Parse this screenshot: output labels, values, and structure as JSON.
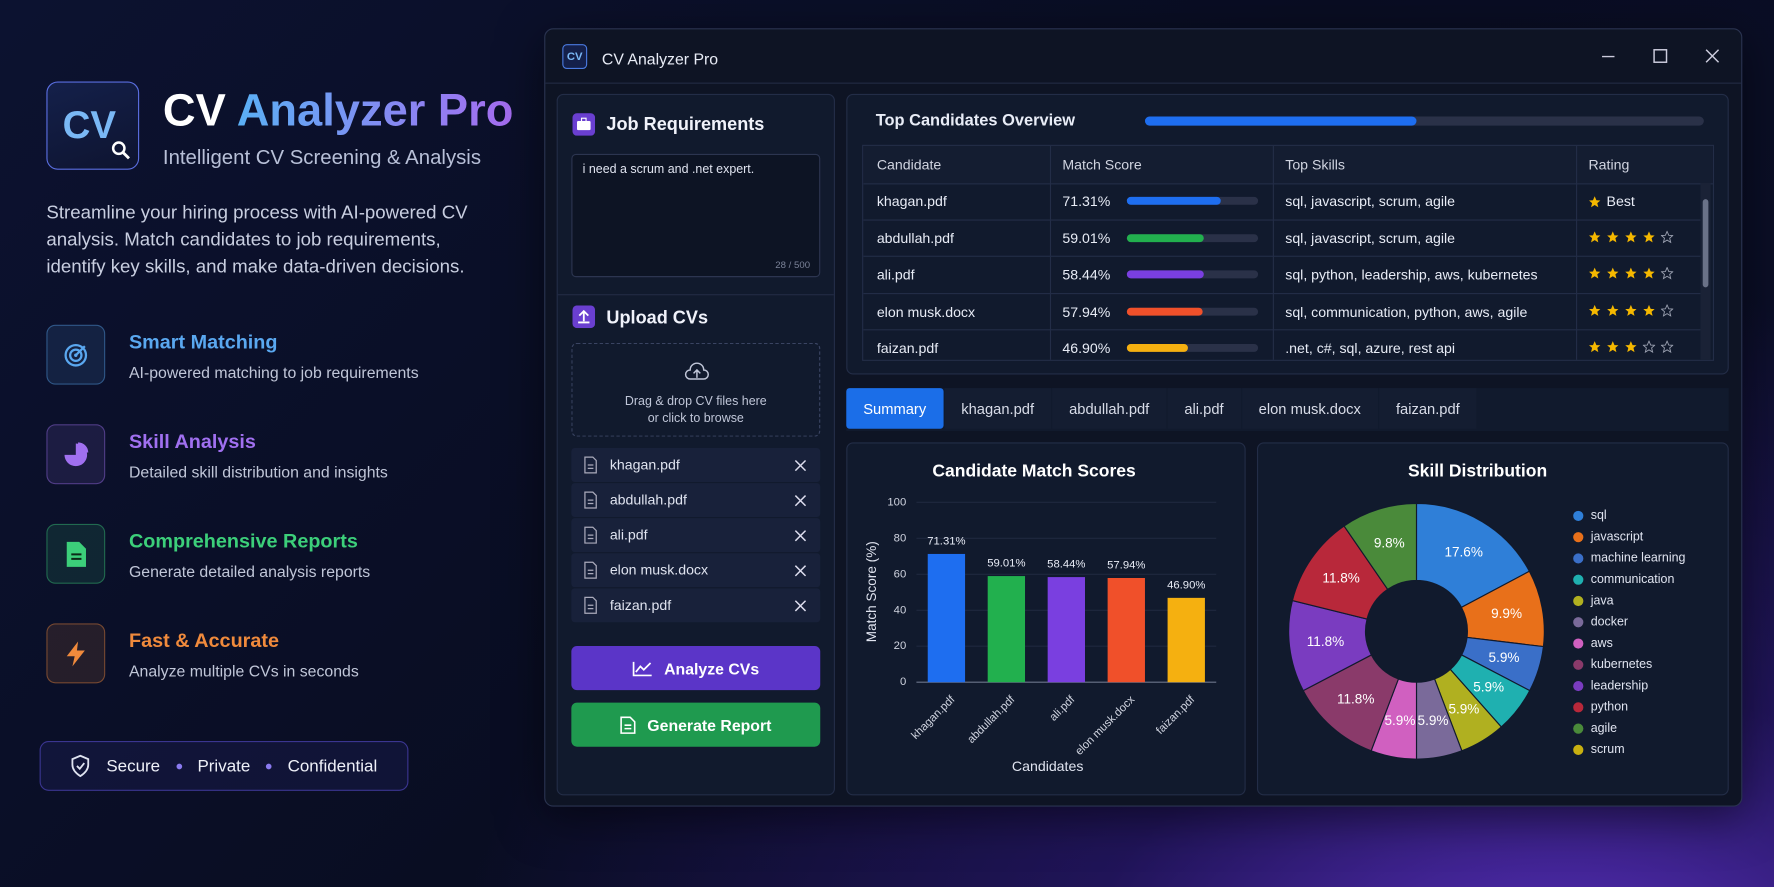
{
  "hero": {
    "logo": "CV",
    "title_main": "CV",
    "title_accent": "Analyzer Pro",
    "subtitle": "Intelligent CV Screening & Analysis",
    "description": "Streamline your hiring process with AI-powered CV analysis. Match candidates to job requirements, identify key skills, and make data-driven decisions."
  },
  "features": [
    {
      "title": "Smart Matching",
      "description": "AI-powered matching to job requirements",
      "color": "#5aa8f0"
    },
    {
      "title": "Skill Analysis",
      "description": "Detailed skill distribution and insights",
      "color": "#a070f0"
    },
    {
      "title": "Comprehensive Reports",
      "description": "Generate detailed analysis reports",
      "color": "#3ccf7a"
    },
    {
      "title": "Fast & Accurate",
      "description": "Analyze multiple CVs in seconds",
      "color": "#f08a3c"
    }
  ],
  "badges": [
    "Secure",
    "Private",
    "Confidential"
  ],
  "window": {
    "icon": "CV",
    "title": "CV Analyzer Pro"
  },
  "job": {
    "title": "Job Requirements",
    "text": "i need a scrum and .net expert.",
    "counter": "28 / 500"
  },
  "upload": {
    "title": "Upload CVs",
    "drop_line1": "Drag & drop CV files here",
    "drop_line2": "or click to browse",
    "files": [
      "khagan.pdf",
      "abdullah.pdf",
      "ali.pdf",
      "elon musk.docx",
      "faizan.pdf"
    ]
  },
  "buttons": {
    "analyze": "Analyze CVs",
    "report": "Generate Report"
  },
  "overview": {
    "title": "Top Candidates Overview",
    "columns": [
      "Candidate",
      "Match Score",
      "Top Skills",
      "Rating"
    ],
    "max_stars": 5,
    "rows": [
      {
        "candidate": "khagan.pdf",
        "score": 71.31,
        "score_label": "71.31%",
        "color": "#1e6ef0",
        "skills": "sql, javascript, scrum, agile",
        "rating_label": "Best"
      },
      {
        "candidate": "abdullah.pdf",
        "score": 59.01,
        "score_label": "59.01%",
        "color": "#22b04e",
        "skills": "sql, javascript, scrum, agile",
        "stars": 4
      },
      {
        "candidate": "ali.pdf",
        "score": 58.44,
        "score_label": "58.44%",
        "color": "#7a3fe0",
        "skills": "sql, python, leadership, aws, kubernetes",
        "stars": 4
      },
      {
        "candidate": "elon musk.docx",
        "score": 57.94,
        "score_label": "57.94%",
        "color": "#f0502a",
        "skills": "sql, communication, python, aws, agile",
        "stars": 4
      },
      {
        "candidate": "faizan.pdf",
        "score": 46.9,
        "score_label": "46.90%",
        "color": "#f5b010",
        "skills": ".net, c#, sql, azure, rest api",
        "stars": 3
      }
    ]
  },
  "tabs": {
    "items": [
      "Summary",
      "khagan.pdf",
      "abdullah.pdf",
      "ali.pdf",
      "elon musk.docx",
      "faizan.pdf"
    ],
    "active": 0
  },
  "chart_data": [
    {
      "type": "bar",
      "title": "Candidate Match Scores",
      "categories": [
        "khagan.pdf",
        "abdullah.pdf",
        "ali.pdf",
        "elon musk.docx",
        "faizan.pdf"
      ],
      "values": [
        71.31,
        59.01,
        58.44,
        57.94,
        46.9
      ],
      "value_labels": [
        "71.31%",
        "59.01%",
        "58.44%",
        "57.94%",
        "46.90%"
      ],
      "colors": [
        "#1e6ef0",
        "#22b04e",
        "#7a3fe0",
        "#f0502a",
        "#f5b010"
      ],
      "ylim": [
        0,
        100
      ],
      "yticks": [
        0,
        20,
        40,
        60,
        80,
        100
      ],
      "xlabel": "Candidates",
      "ylabel": "Match Score (%)",
      "grid": true
    },
    {
      "type": "pie",
      "title": "Skill Distribution",
      "donut": true,
      "legend": "right",
      "categories": [
        "sql",
        "javascript",
        "machine learning",
        "communication",
        "java",
        "docker",
        "aws",
        "kubernetes",
        "leadership",
        "python",
        "agile",
        "scrum"
      ],
      "values": [
        17.6,
        9.9,
        5.9,
        5.9,
        5.9,
        5.9,
        5.9,
        11.8,
        11.8,
        11.8,
        9.8,
        null
      ],
      "value_labels": [
        "17.6%",
        "9.9%",
        "5.9%",
        "5.9%",
        "5.9%",
        "5.9%",
        "5.9%",
        "11.8%",
        "11.8%",
        "11.8%",
        "9.8%",
        null
      ],
      "colors": [
        "#2f7fd8",
        "#e8701a",
        "#3a6fc8",
        "#1fb0b0",
        "#b0b020",
        "#7a6a9a",
        "#d060c0",
        "#8a3a6a",
        "#7a3cc0",
        "#b8283a",
        "#4a8a3a",
        "#c8b010"
      ]
    }
  ]
}
